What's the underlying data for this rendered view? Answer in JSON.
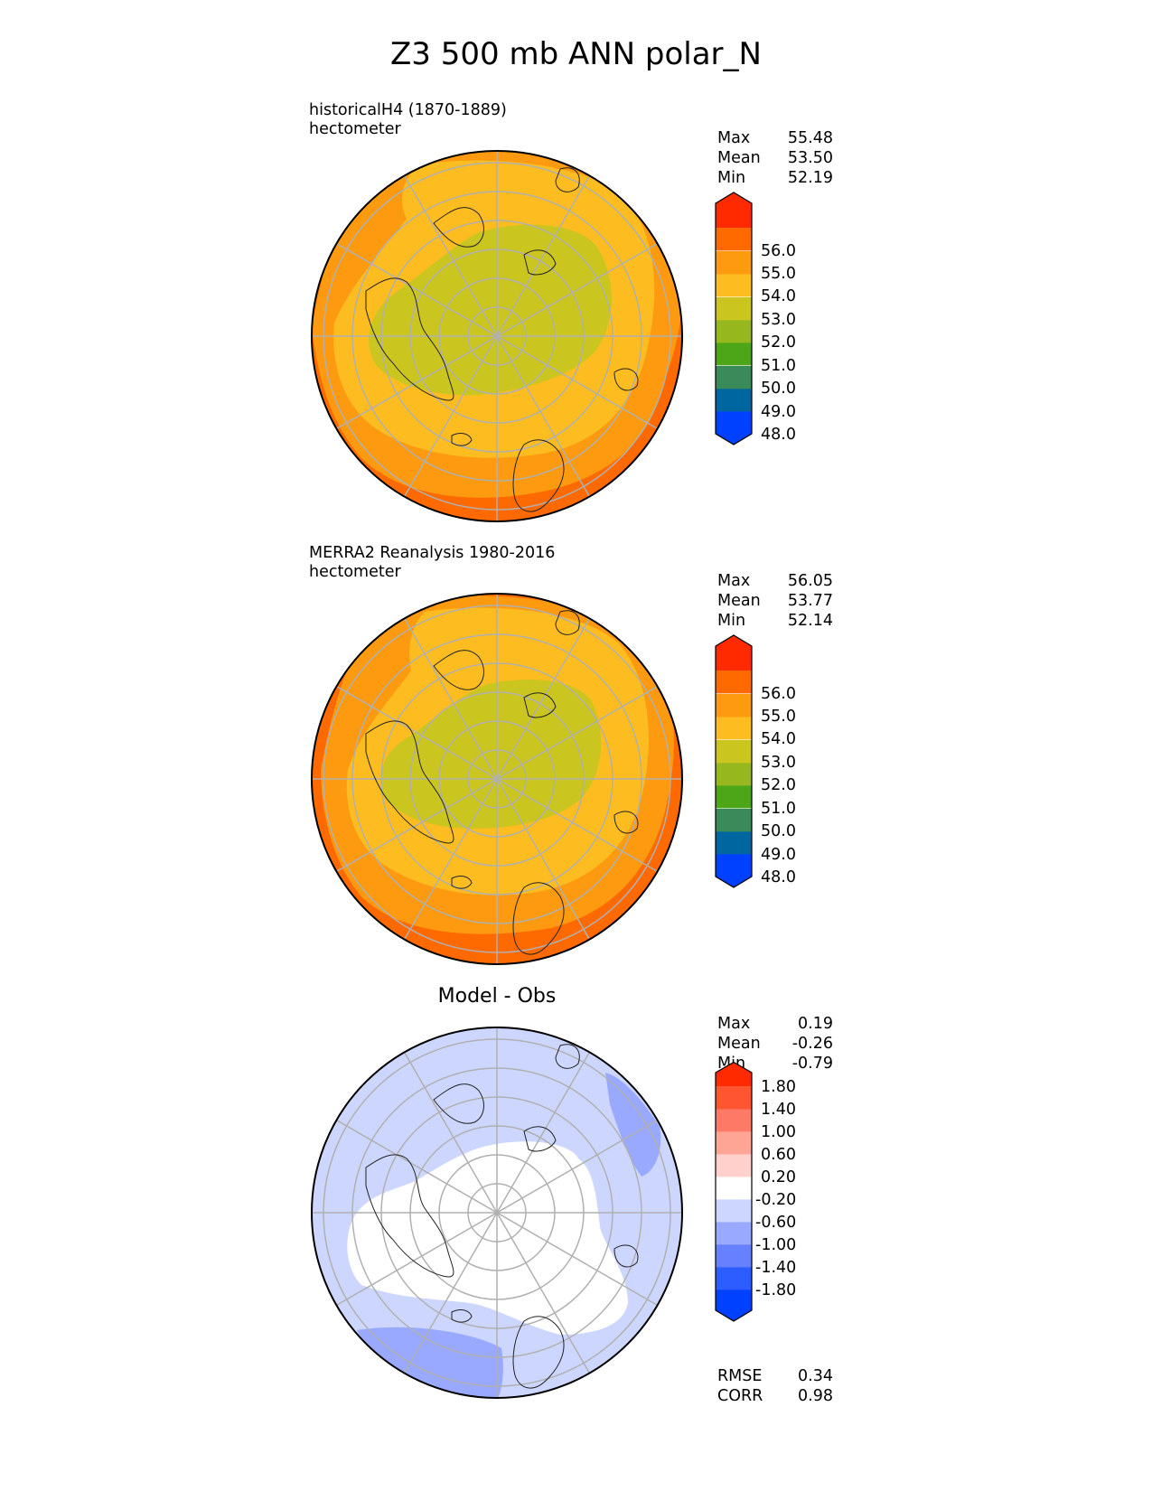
{
  "figure_title": "Z3 500 mb ANN polar_N",
  "panels": [
    {
      "id": "test",
      "title_line1": "historicalH4 (1870-1889)",
      "title_line2": "hectometer",
      "stats": [
        {
          "k": "Max",
          "v": "55.48"
        },
        {
          "k": "Mean",
          "v": "53.50"
        },
        {
          "k": "Min",
          "v": "52.19"
        }
      ],
      "colorbar": {
        "colors": [
          "#0040ff",
          "#0066a0",
          "#3a8a5a",
          "#4da618",
          "#96b81e",
          "#cbc51f",
          "#fdbd20",
          "#fd9a10",
          "#fe6a00",
          "#ff2a00"
        ],
        "ticks": [
          "48.0",
          "49.0",
          "50.0",
          "51.0",
          "52.0",
          "53.0",
          "54.0",
          "55.0",
          "56.0"
        ]
      },
      "contour_bands": [
        {
          "level": "55-56",
          "color": "#fe6a00"
        },
        {
          "level": "54-55",
          "color": "#fd9a10"
        },
        {
          "level": "53-54",
          "color": "#fdbd20"
        },
        {
          "level": "52-53",
          "color": "#cbc51f"
        }
      ]
    },
    {
      "id": "reference",
      "title_line1": "MERRA2 Reanalysis 1980-2016",
      "title_line2": "hectometer",
      "stats": [
        {
          "k": "Max",
          "v": "56.05"
        },
        {
          "k": "Mean",
          "v": "53.77"
        },
        {
          "k": "Min",
          "v": "52.14"
        }
      ],
      "colorbar": {
        "colors": [
          "#0040ff",
          "#0066a0",
          "#3a8a5a",
          "#4da618",
          "#96b81e",
          "#cbc51f",
          "#fdbd20",
          "#fd9a10",
          "#fe6a00",
          "#ff2a00"
        ],
        "ticks": [
          "48.0",
          "49.0",
          "50.0",
          "51.0",
          "52.0",
          "53.0",
          "54.0",
          "55.0",
          "56.0"
        ]
      },
      "contour_bands": [
        {
          "level": "55-56",
          "color": "#fe6a00"
        },
        {
          "level": "54-55",
          "color": "#fd9a10"
        },
        {
          "level": "53-54",
          "color": "#fdbd20"
        },
        {
          "level": "52-53",
          "color": "#cbc51f"
        }
      ]
    },
    {
      "id": "difference",
      "title_center": "Model - Obs",
      "stats": [
        {
          "k": "Max",
          "v": "0.19"
        },
        {
          "k": "Mean",
          "v": "-0.26"
        },
        {
          "k": "Min",
          "v": "-0.79"
        }
      ],
      "metrics": [
        {
          "k": "RMSE",
          "v": "0.34"
        },
        {
          "k": "CORR",
          "v": "0.98"
        }
      ],
      "colorbar": {
        "colors": [
          "#0040ff",
          "#2d5cff",
          "#6680ff",
          "#99a9ff",
          "#ccd6ff",
          "#ffffff",
          "#ffd0cc",
          "#ffa596",
          "#ff7a66",
          "#ff5530",
          "#ff2a00"
        ],
        "ticks": [
          "-1.80",
          "-1.40",
          "-1.00",
          "-0.60",
          "-0.20",
          "0.20",
          "0.60",
          "1.00",
          "1.40",
          "1.80"
        ]
      },
      "contour_bands": [
        {
          "level": "-1.00 to -0.60",
          "color": "#99a9ff"
        },
        {
          "level": "-0.60 to -0.20",
          "color": "#ccd6ff"
        },
        {
          "level": "-0.20 to 0.20",
          "color": "#ffffff"
        }
      ]
    }
  ]
}
